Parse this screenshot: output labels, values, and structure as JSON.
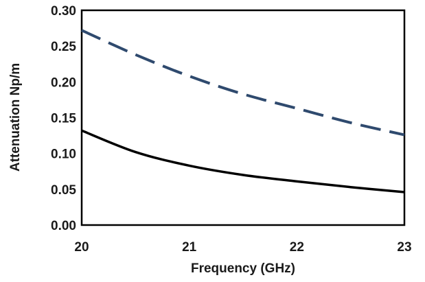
{
  "chart_data": {
    "type": "line",
    "title": "",
    "xlabel": "Frequency (GHz)",
    "ylabel": "Attenuation Np/m",
    "xlim": [
      20,
      23
    ],
    "ylim": [
      0.0,
      0.3
    ],
    "x_ticks": [
      "20",
      "21",
      "22",
      "23"
    ],
    "y_ticks": [
      "0.00",
      "0.05",
      "0.10",
      "0.15",
      "0.20",
      "0.25",
      "0.30"
    ],
    "grid": false,
    "legend": "none",
    "series": [
      {
        "style": "dashed",
        "color": "#2f4a6e",
        "x": [
          20,
          20.5,
          21,
          21.5,
          22,
          22.5,
          23
        ],
        "values": [
          0.272,
          0.238,
          0.208,
          0.183,
          0.163,
          0.143,
          0.126
        ]
      },
      {
        "style": "solid",
        "color": "#000000",
        "x": [
          20,
          20.5,
          21,
          21.5,
          22,
          22.5,
          23
        ],
        "values": [
          0.132,
          0.102,
          0.083,
          0.07,
          0.061,
          0.053,
          0.046
        ]
      }
    ]
  }
}
